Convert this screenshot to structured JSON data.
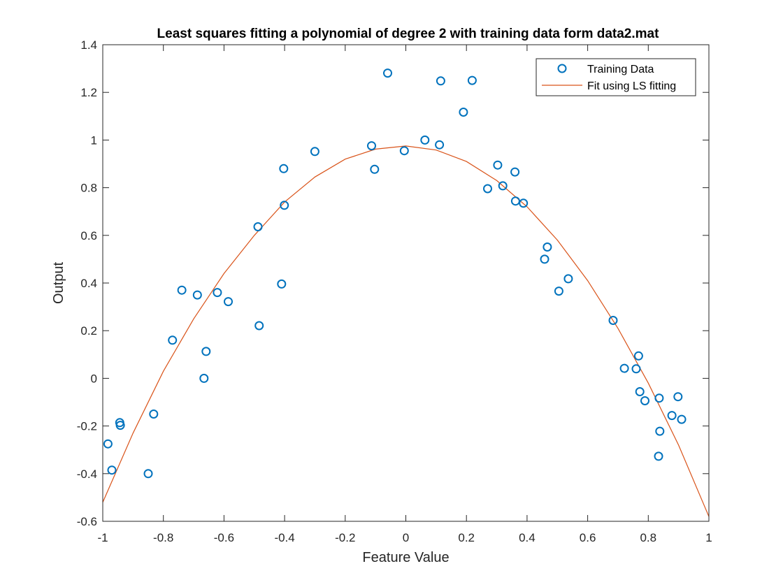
{
  "chart_data": {
    "type": "scatter",
    "title": "Least squares fitting a polynomial of degree 2 with training data form data2.mat",
    "xlabel": "Feature Value",
    "ylabel": "Output",
    "xlim": [
      -1,
      1
    ],
    "ylim": [
      -0.6,
      1.4
    ],
    "xticks": [
      -1,
      -0.8,
      -0.6,
      -0.4,
      -0.2,
      0,
      0.2,
      0.4,
      0.6,
      0.8,
      1
    ],
    "yticks": [
      -0.6,
      -0.4,
      -0.2,
      0,
      0.2,
      0.4,
      0.6,
      0.8,
      1,
      1.2,
      1.4
    ],
    "grid": false,
    "legend_position": "top-right",
    "colors": {
      "points": "#0072BD",
      "fit": "#D95319",
      "axis": "#262626"
    },
    "series": [
      {
        "name": "Training Data",
        "kind": "scatter",
        "marker": "circle",
        "x": [
          -0.983,
          -0.97,
          -0.944,
          -0.942,
          -0.85,
          -0.832,
          -0.77,
          -0.739,
          -0.688,
          -0.666,
          -0.659,
          -0.622,
          -0.586,
          -0.488,
          -0.484,
          -0.41,
          -0.403,
          -0.401,
          -0.3,
          -0.113,
          -0.103,
          -0.06,
          -0.005,
          0.063,
          0.111,
          0.115,
          0.19,
          0.219,
          0.27,
          0.303,
          0.32,
          0.36,
          0.362,
          0.388,
          0.458,
          0.467,
          0.505,
          0.536,
          0.684,
          0.721,
          0.76,
          0.768,
          0.772,
          0.789,
          0.834,
          0.836,
          0.838,
          0.878,
          0.898,
          0.91
        ],
        "y": [
          -0.275,
          -0.385,
          -0.186,
          -0.197,
          -0.4,
          -0.15,
          0.16,
          0.37,
          0.35,
          0.0,
          0.113,
          0.36,
          0.322,
          0.636,
          0.221,
          0.396,
          0.88,
          0.726,
          0.952,
          0.976,
          0.877,
          1.281,
          0.955,
          1.0,
          0.98,
          1.248,
          1.117,
          1.25,
          0.796,
          0.895,
          0.808,
          0.866,
          0.744,
          0.735,
          0.5,
          0.551,
          0.366,
          0.418,
          0.243,
          0.042,
          0.04,
          0.094,
          -0.056,
          -0.094,
          -0.327,
          -0.083,
          -0.222,
          -0.156,
          -0.077,
          -0.172
        ]
      },
      {
        "name": "Fit using LS fitting",
        "kind": "line",
        "x": [
          -1,
          -0.9,
          -0.8,
          -0.7,
          -0.6,
          -0.5,
          -0.4,
          -0.3,
          -0.2,
          -0.1,
          0,
          0.1,
          0.2,
          0.3,
          0.4,
          0.5,
          0.6,
          0.7,
          0.8,
          0.9,
          1
        ],
        "y": [
          -0.52,
          -0.23,
          0.03,
          0.25,
          0.44,
          0.6,
          0.74,
          0.845,
          0.92,
          0.962,
          0.975,
          0.958,
          0.91,
          0.83,
          0.72,
          0.58,
          0.41,
          0.21,
          -0.02,
          -0.28,
          -0.58
        ]
      }
    ]
  }
}
